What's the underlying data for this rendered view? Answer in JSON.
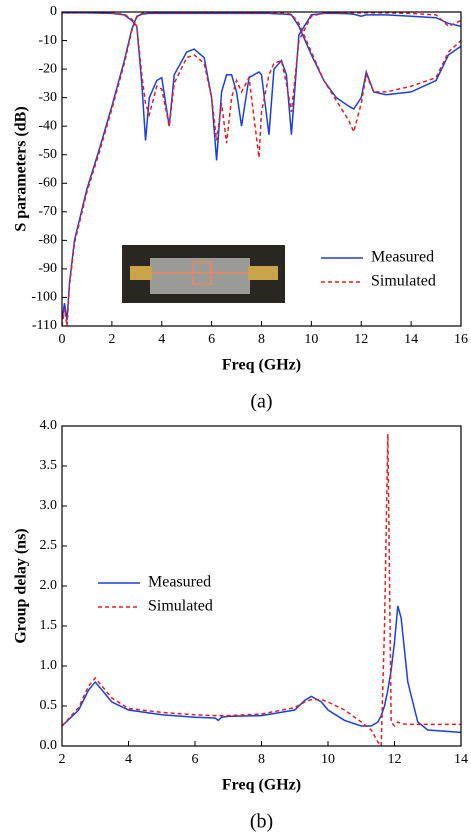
{
  "chart_data": [
    {
      "type": "line",
      "xlabel": "Freq (GHz)",
      "ylabel": "S parameters (dB)",
      "caption": "(a)",
      "legend": "lower right",
      "x": [
        0,
        0.1,
        0.2,
        0.3,
        0.5,
        1,
        1.5,
        2,
        2.5,
        2.8,
        3,
        3.2,
        3.35,
        3.5,
        3.8,
        4,
        4.3,
        4.5,
        5,
        5.3,
        5.7,
        6,
        6.2,
        6.4,
        6.6,
        6.8,
        7,
        7.2,
        7.5,
        7.9,
        8,
        8.3,
        8.5,
        8.8,
        9,
        9.2,
        9.5,
        10,
        10.5,
        11,
        11.5,
        11.7,
        12,
        12.2,
        12.5,
        13,
        14,
        15,
        15.5,
        16
      ],
      "xlim": [
        0,
        16
      ],
      "xticks": [
        0,
        2,
        4,
        6,
        8,
        10,
        12,
        14,
        16
      ],
      "ylim": [
        -110,
        0
      ],
      "yticks": [
        0,
        -10,
        -20,
        -30,
        -40,
        -50,
        -60,
        -70,
        -80,
        -90,
        -100,
        -110
      ],
      "series": [
        {
          "name": "Measured",
          "color": "#1a3fe0",
          "dash": false,
          "curves": [
            [
              -108,
              -102,
              -108,
              -95,
              -80,
              -62,
              -48,
              -33,
              -17,
              -6,
              -1.5,
              -0.8,
              -0.6,
              -0.5,
              -0.5,
              -0.5,
              -0.5,
              -0.5,
              -0.5,
              -0.5,
              -0.5,
              -0.5,
              -0.5,
              -0.5,
              -0.5,
              -0.5,
              -0.5,
              -0.5,
              -0.5,
              -0.5,
              -0.5,
              -0.5,
              -0.6,
              -0.7,
              -0.8,
              -1,
              -5,
              -15,
              -24,
              -30,
              -33,
              -34,
              -30,
              -21,
              -28,
              -29,
              -28,
              -24,
              -15,
              -12
            ],
            [
              -0.3,
              -0.3,
              -0.3,
              -0.3,
              -0.3,
              -0.3,
              -0.4,
              -0.5,
              -1,
              -3,
              -5,
              -25,
              -45,
              -30,
              -24,
              -23,
              -40,
              -22,
              -14,
              -13,
              -16,
              -30,
              -52,
              -28,
              -22,
              -22,
              -28,
              -40,
              -23,
              -21,
              -22,
              -43,
              -20,
              -17,
              -22,
              -43,
              -8,
              -1,
              -0.5,
              -0.5,
              -0.6,
              -0.8,
              -1.5,
              -1,
              -1,
              -1,
              -1.5,
              -2,
              -4,
              -5
            ]
          ]
        },
        {
          "name": "Simulated",
          "color": "#e02020",
          "dash": true,
          "curves": [
            [
              -110,
              -104,
              -110,
              -96,
              -81,
              -63,
              -49,
              -34,
              -18,
              -6.5,
              -1.8,
              -0.5,
              -0.3,
              -0.3,
              -0.3,
              -0.3,
              -0.3,
              -0.3,
              -0.3,
              -0.3,
              -0.3,
              -0.3,
              -0.3,
              -0.3,
              -0.3,
              -0.3,
              -0.3,
              -0.3,
              -0.3,
              -0.3,
              -0.3,
              -0.3,
              -0.3,
              -0.4,
              -0.5,
              -0.8,
              -4,
              -14,
              -24,
              -31,
              -38,
              -42,
              -32,
              -22,
              -28,
              -28,
              -26,
              -23,
              -14,
              -10
            ],
            [
              -0.2,
              -0.2,
              -0.2,
              -0.2,
              -0.2,
              -0.2,
              -0.3,
              -0.4,
              -0.8,
              -2.5,
              -5,
              -22,
              -32,
              -36,
              -26,
              -27,
              -40,
              -25,
              -16,
              -15,
              -18,
              -30,
              -45,
              -32,
              -46,
              -30,
              -24,
              -28,
              -23,
              -51,
              -35,
              -22,
              -18,
              -17,
              -25,
              -35,
              -10,
              -1.5,
              -0.3,
              -0.3,
              -0.3,
              -0.3,
              -0.3,
              -0.3,
              -0.3,
              -0.3,
              -0.5,
              -1,
              -5,
              -3
            ]
          ]
        }
      ]
    },
    {
      "type": "line",
      "xlabel": "Freq (GHz)",
      "ylabel": "Group delay (ns)",
      "caption": "(b)",
      "legend": "center left",
      "x": [
        2,
        2.5,
        2.8,
        3,
        3.2,
        3.5,
        4,
        5,
        6,
        6.6,
        6.7,
        6.8,
        7,
        8,
        9,
        9.3,
        9.5,
        9.8,
        10,
        10.5,
        11,
        11.3,
        11.5,
        11.6,
        11.7,
        11.8,
        11.9,
        12,
        12.1,
        12.2,
        12.4,
        12.7,
        13,
        14
      ],
      "xlim": [
        2,
        14
      ],
      "xticks": [
        2,
        4,
        6,
        8,
        10,
        12,
        14
      ],
      "ylim": [
        0,
        4
      ],
      "yticks": [
        {
          "value": 0,
          "label": "0.0"
        },
        {
          "value": 0.5,
          "label": "0.5"
        },
        {
          "value": 1,
          "label": "1.0"
        },
        {
          "value": 1.5,
          "label": "1.5"
        },
        {
          "value": 2,
          "label": "2.0"
        },
        {
          "value": 2.5,
          "label": "2.5"
        },
        {
          "value": 3,
          "label": "3.0"
        },
        {
          "value": 3.5,
          "label": "3.5"
        },
        {
          "value": 4,
          "label": "4.0"
        }
      ],
      "series": [
        {
          "name": "Measured",
          "color": "#1a3fe0",
          "dash": false,
          "curves": [
            [
              0.25,
              0.45,
              0.7,
              0.8,
              0.7,
              0.55,
              0.45,
              0.39,
              0.36,
              0.35,
              0.32,
              0.36,
              0.37,
              0.38,
              0.45,
              0.57,
              0.62,
              0.55,
              0.45,
              0.32,
              0.25,
              0.25,
              0.3,
              0.38,
              0.5,
              0.7,
              0.95,
              1.3,
              1.75,
              1.6,
              0.8,
              0.3,
              0.2,
              0.17
            ]
          ]
        },
        {
          "name": "Simulated",
          "color": "#e02020",
          "dash": true,
          "curves": [
            [
              0.25,
              0.48,
              0.75,
              0.85,
              0.75,
              0.6,
              0.47,
              0.42,
              0.39,
              0.38,
              0.38,
              0.38,
              0.38,
              0.4,
              0.48,
              0.55,
              0.58,
              0.58,
              0.55,
              0.45,
              0.3,
              0.2,
              0.05,
              0,
              1.5,
              3.9,
              0.3,
              0.25,
              0.3,
              0.28,
              0.27,
              0.27,
              0.27,
              0.27
            ]
          ]
        }
      ]
    }
  ]
}
